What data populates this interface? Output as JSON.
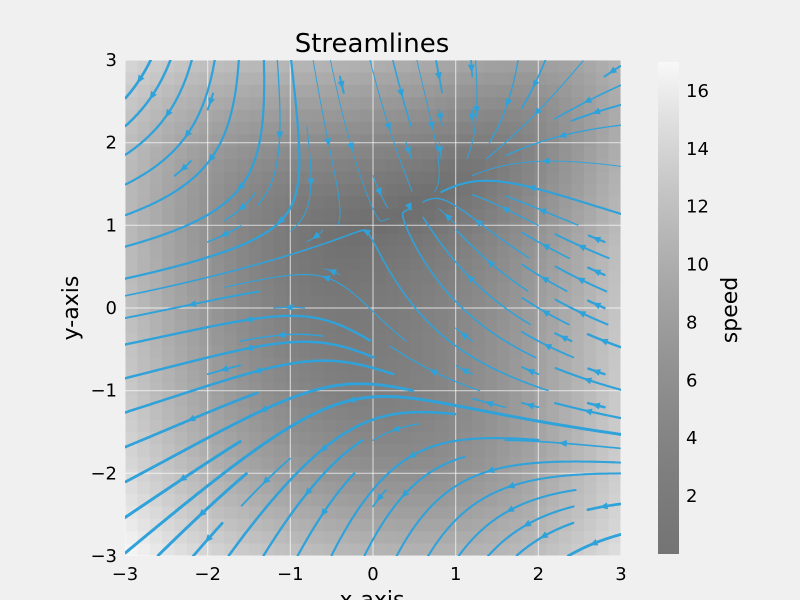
{
  "chart_data": {
    "type": "streamplot",
    "title": "Streamlines",
    "xlabel": "x-axis",
    "ylabel": "y-axis",
    "xlim": [
      -3,
      3
    ],
    "ylim": [
      -3,
      3
    ],
    "x_ticks": [
      "−3",
      "−2",
      "−1",
      "0",
      "1",
      "2",
      "3"
    ],
    "y_ticks": [
      "−3",
      "−2",
      "−1",
      "0",
      "1",
      "2",
      "3"
    ],
    "x_tick_values": [
      -3,
      -2,
      -1,
      0,
      1,
      2,
      3
    ],
    "y_tick_values": [
      -3,
      -2,
      -1,
      0,
      1,
      2,
      3
    ],
    "grid": true,
    "background_map": "speed",
    "colorbar": {
      "label": "speed",
      "ticks": [
        "2",
        "4",
        "6",
        "8",
        "10",
        "12",
        "14",
        "16"
      ],
      "tick_values": [
        2,
        4,
        6,
        8,
        10,
        12,
        14,
        16
      ],
      "range": [
        0,
        17
      ],
      "colormap": "gray"
    },
    "streamline_color": "#30a2da",
    "arrow_color": "#30a2da"
  }
}
